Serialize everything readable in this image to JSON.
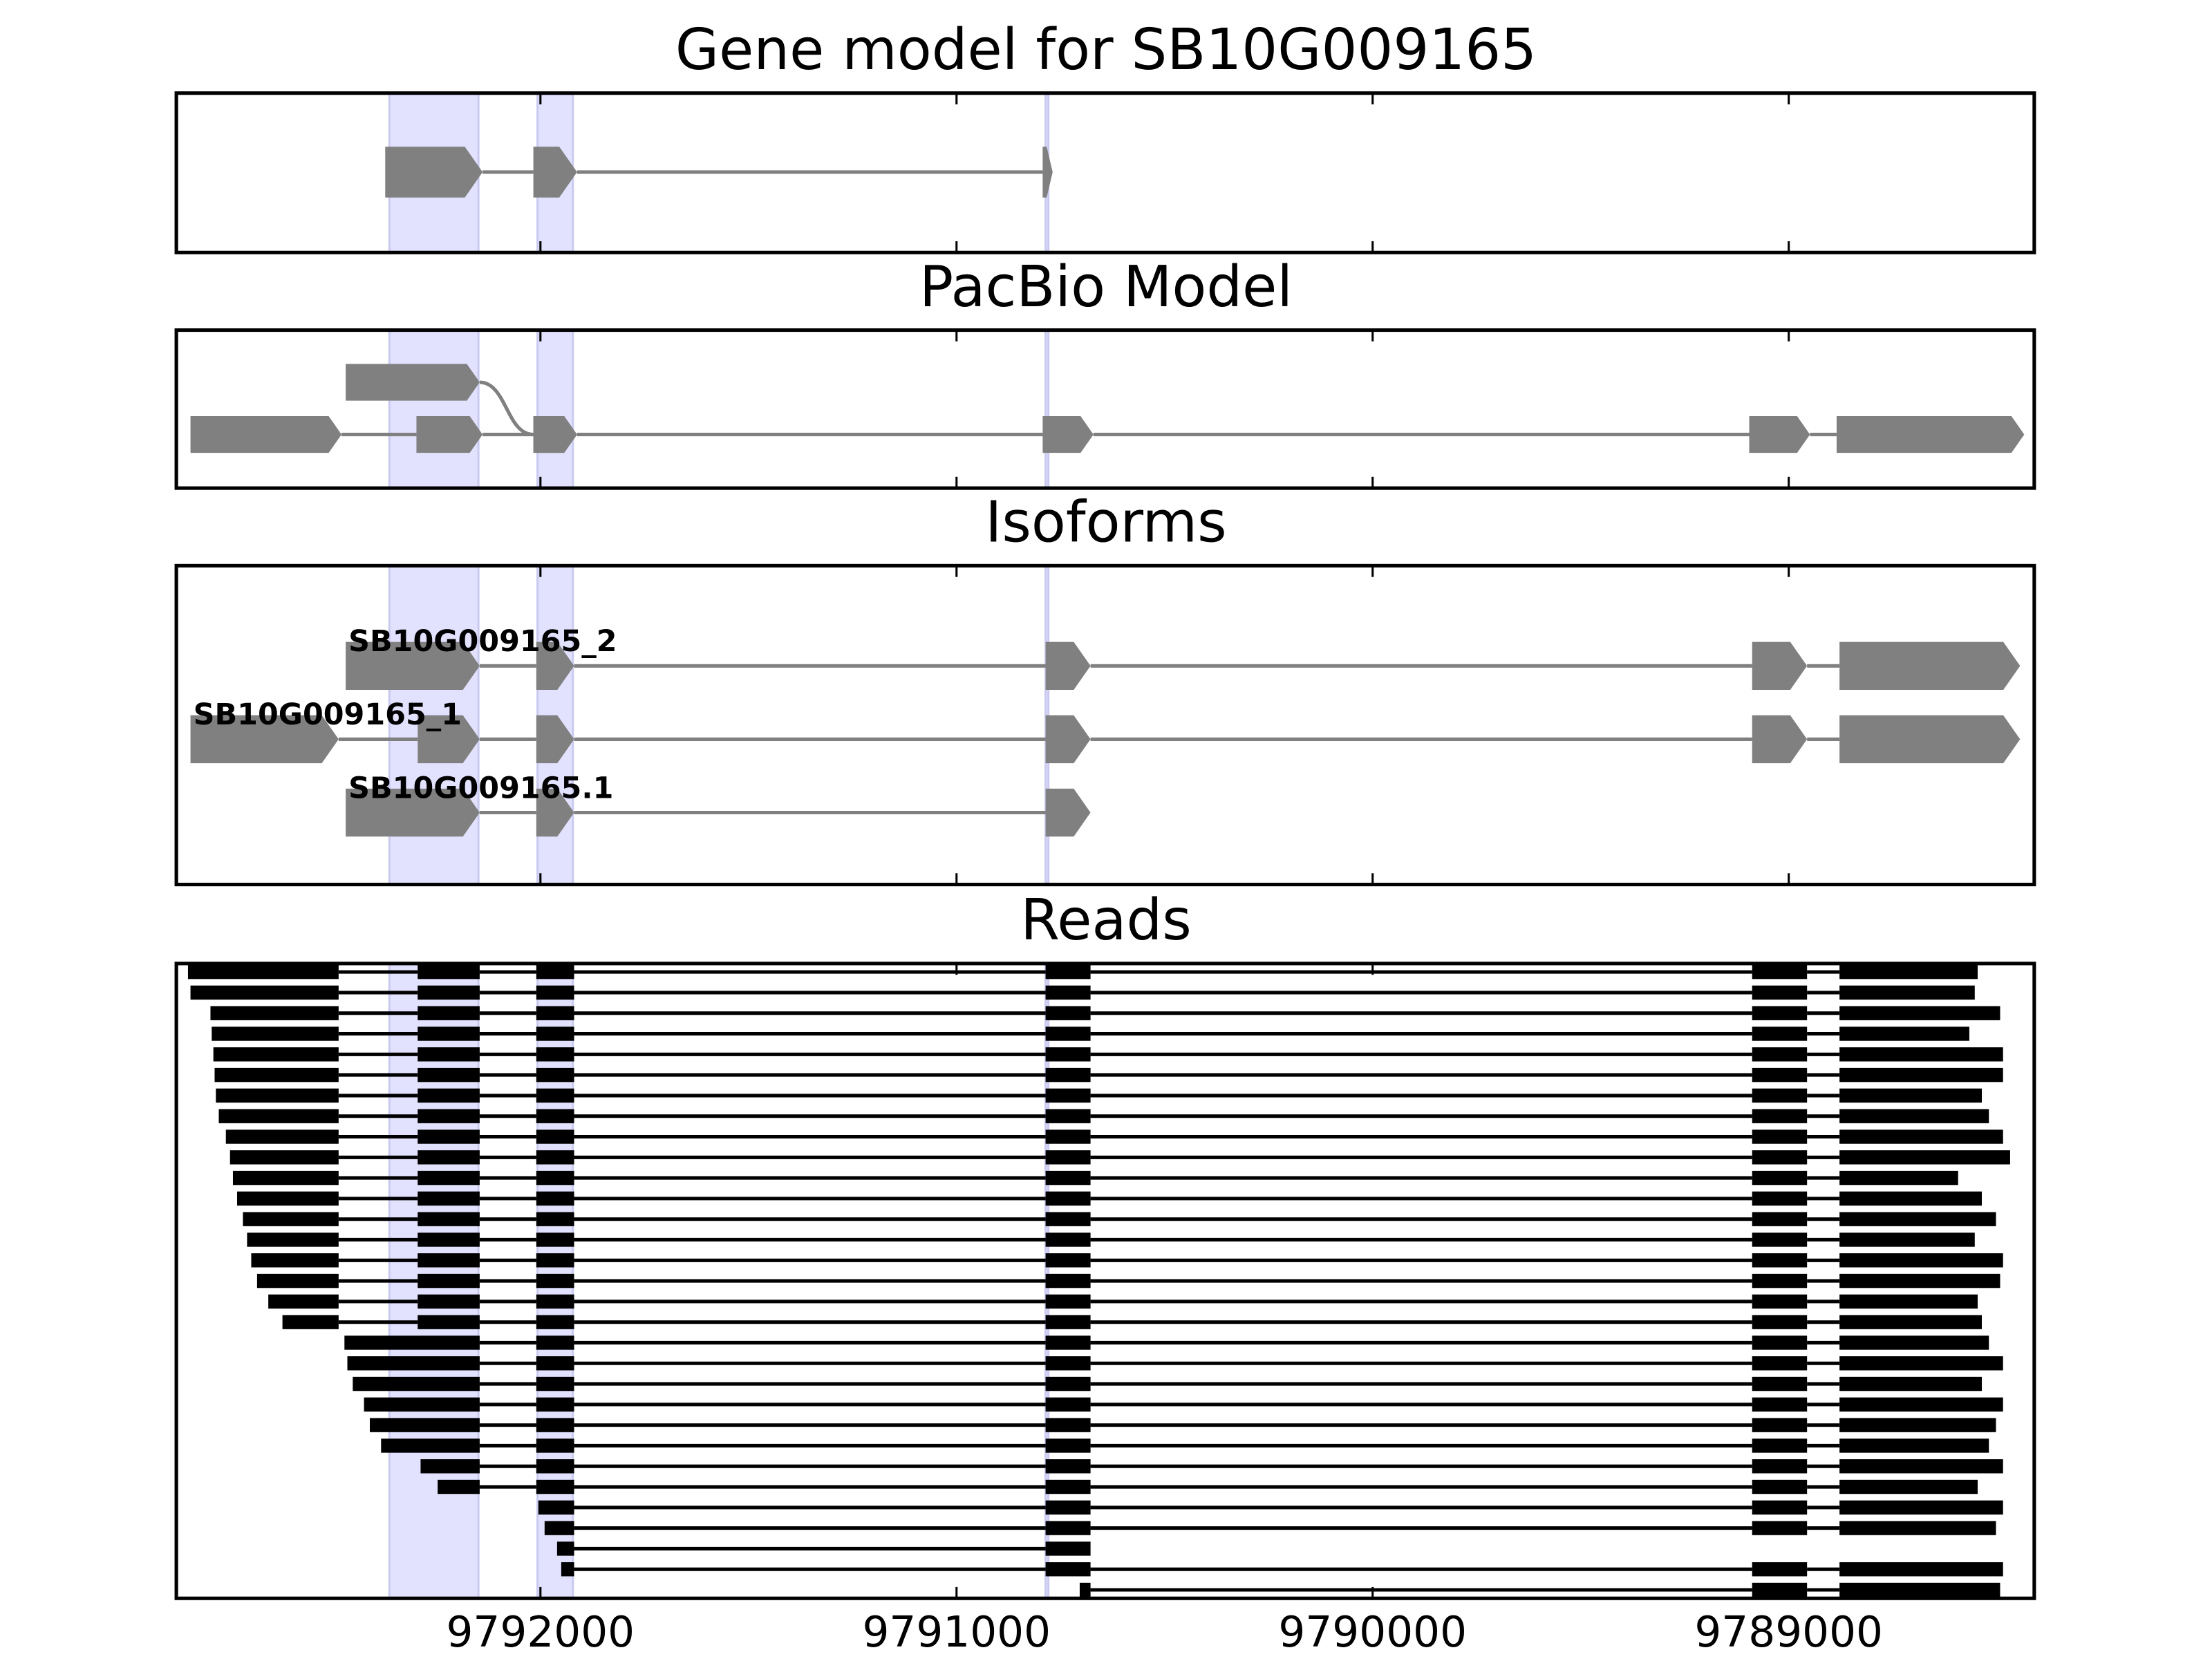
{
  "chart_data": [
    {
      "type": "transcripts",
      "title": "Gene model for SB10G009165",
      "xlim": [
        9792875,
        9788410
      ],
      "highlights": [
        [
          9792363,
          9792149
        ],
        [
          9792007,
          9791922
        ],
        [
          9790786,
          9790781
        ]
      ],
      "color": "#808080",
      "transcripts": [
        [
          [
            9792373,
            9792139
          ],
          [
            9792017,
            9791912
          ],
          [
            9790793,
            9790769
          ]
        ]
      ]
    },
    {
      "type": "transcripts",
      "title": "PacBio Model",
      "xlim": [
        9792875,
        9788410
      ],
      "highlights": [
        [
          9792363,
          9792149
        ],
        [
          9792007,
          9791922
        ],
        [
          9790786,
          9790781
        ]
      ],
      "color": "#808080",
      "transcripts": [
        [
          [
            9792468,
            9792146
          ],
          [
            9792017,
            9791912
          ]
        ],
        [
          [
            9792841,
            9792478
          ],
          [
            9792298,
            9792139
          ],
          [
            9792017,
            9791912
          ],
          [
            9790793,
            9790671
          ],
          [
            9789095,
            9788949
          ],
          [
            9788885,
            9788434
          ]
        ]
      ]
    },
    {
      "type": "isoforms",
      "title": "Isoforms",
      "xlim": [
        9792875,
        9788410
      ],
      "highlights": [
        [
          9792363,
          9792149
        ],
        [
          9792007,
          9791922
        ],
        [
          9790786,
          9790781
        ]
      ],
      "color": "#808080",
      "isoforms": [
        {
          "name": "SB10G009165_2",
          "exons": [
            [
              9792468,
              9792146
            ],
            [
              9792010,
              9791919
            ],
            [
              9790786,
              9790678
            ],
            [
              9789088,
              9788956
            ],
            [
              9788878,
              9788444
            ]
          ]
        },
        {
          "name": "SB10G009165_1",
          "exons": [
            [
              9792841,
              9792485
            ],
            [
              9792295,
              9792146
            ],
            [
              9792010,
              9791919
            ],
            [
              9790786,
              9790678
            ],
            [
              9789088,
              9788956
            ],
            [
              9788878,
              9788444
            ]
          ]
        },
        {
          "name": "SB10G009165.1",
          "exons": [
            [
              9792468,
              9792146
            ],
            [
              9792010,
              9791919
            ],
            [
              9790786,
              9790678
            ]
          ]
        }
      ]
    },
    {
      "type": "reads",
      "title": "Reads",
      "xlim": [
        9792875,
        9788410
      ],
      "xticks": [
        9792000,
        9791000,
        9790000,
        9789000
      ],
      "highlights": [
        [
          9792363,
          9792149
        ],
        [
          9792007,
          9791922
        ],
        [
          9790786,
          9790781
        ]
      ],
      "color": "#000000",
      "reads": [
        [
          [
            9792847,
            9792485
          ],
          [
            9792295,
            9792146
          ],
          [
            9792010,
            9791919
          ],
          [
            9790786,
            9790678
          ],
          [
            9789088,
            9788956
          ],
          [
            9788878,
            9788546
          ]
        ],
        [
          [
            9792841,
            9792485
          ],
          [
            9792295,
            9792146
          ],
          [
            9792010,
            9791919
          ],
          [
            9790786,
            9790678
          ],
          [
            9789088,
            9788956
          ],
          [
            9788878,
            9788553
          ]
        ],
        [
          [
            9792793,
            9792485
          ],
          [
            9792295,
            9792146
          ],
          [
            9792010,
            9791919
          ],
          [
            9790786,
            9790678
          ],
          [
            9789088,
            9788956
          ],
          [
            9788878,
            9788492
          ]
        ],
        [
          [
            9792790,
            9792485
          ],
          [
            9792295,
            9792146
          ],
          [
            9792010,
            9791919
          ],
          [
            9790786,
            9790678
          ],
          [
            9789088,
            9788956
          ],
          [
            9788878,
            9788566
          ]
        ],
        [
          [
            9792786,
            9792485
          ],
          [
            9792295,
            9792146
          ],
          [
            9792010,
            9791919
          ],
          [
            9790786,
            9790678
          ],
          [
            9789088,
            9788956
          ],
          [
            9788878,
            9788485
          ]
        ],
        [
          [
            9792783,
            9792485
          ],
          [
            9792295,
            9792146
          ],
          [
            9792010,
            9791919
          ],
          [
            9790786,
            9790678
          ],
          [
            9789088,
            9788956
          ],
          [
            9788878,
            9788485
          ]
        ],
        [
          [
            9792780,
            9792485
          ],
          [
            9792295,
            9792146
          ],
          [
            9792010,
            9791919
          ],
          [
            9790786,
            9790678
          ],
          [
            9789088,
            9788956
          ],
          [
            9788878,
            9788536
          ]
        ],
        [
          [
            9792773,
            9792485
          ],
          [
            9792295,
            9792146
          ],
          [
            9792010,
            9791919
          ],
          [
            9790786,
            9790678
          ],
          [
            9789088,
            9788956
          ],
          [
            9788878,
            9788519
          ]
        ],
        [
          [
            9792756,
            9792485
          ],
          [
            9792295,
            9792146
          ],
          [
            9792010,
            9791919
          ],
          [
            9790786,
            9790678
          ],
          [
            9789088,
            9788956
          ],
          [
            9788878,
            9788485
          ]
        ],
        [
          [
            9792746,
            9792485
          ],
          [
            9792295,
            9792146
          ],
          [
            9792010,
            9791919
          ],
          [
            9790786,
            9790678
          ],
          [
            9789088,
            9788956
          ],
          [
            9788878,
            9788468
          ]
        ],
        [
          [
            9792739,
            9792485
          ],
          [
            9792295,
            9792146
          ],
          [
            9792010,
            9791919
          ],
          [
            9790786,
            9790678
          ],
          [
            9789088,
            9788956
          ],
          [
            9788878,
            9788593
          ]
        ],
        [
          [
            9792729,
            9792485
          ],
          [
            9792295,
            9792146
          ],
          [
            9792010,
            9791919
          ],
          [
            9790786,
            9790678
          ],
          [
            9789088,
            9788956
          ],
          [
            9788878,
            9788536
          ]
        ],
        [
          [
            9792715,
            9792485
          ],
          [
            9792295,
            9792146
          ],
          [
            9792010,
            9791919
          ],
          [
            9790786,
            9790678
          ],
          [
            9789088,
            9788956
          ],
          [
            9788878,
            9788502
          ]
        ],
        [
          [
            9792705,
            9792485
          ],
          [
            9792295,
            9792146
          ],
          [
            9792010,
            9791919
          ],
          [
            9790786,
            9790678
          ],
          [
            9789088,
            9788956
          ],
          [
            9788878,
            9788553
          ]
        ],
        [
          [
            9792695,
            9792485
          ],
          [
            9792295,
            9792146
          ],
          [
            9792010,
            9791919
          ],
          [
            9790786,
            9790678
          ],
          [
            9789088,
            9788956
          ],
          [
            9788878,
            9788485
          ]
        ],
        [
          [
            9792681,
            9792485
          ],
          [
            9792295,
            9792146
          ],
          [
            9792010,
            9791919
          ],
          [
            9790786,
            9790678
          ],
          [
            9789088,
            9788956
          ],
          [
            9788878,
            9788492
          ]
        ],
        [
          [
            9792654,
            9792485
          ],
          [
            9792295,
            9792146
          ],
          [
            9792010,
            9791919
          ],
          [
            9790786,
            9790678
          ],
          [
            9789088,
            9788956
          ],
          [
            9788878,
            9788546
          ]
        ],
        [
          [
            9792620,
            9792485
          ],
          [
            9792295,
            9792146
          ],
          [
            9792010,
            9791919
          ],
          [
            9790786,
            9790678
          ],
          [
            9789088,
            9788956
          ],
          [
            9788878,
            9788536
          ]
        ],
        [
          [
            9792471,
            9792146
          ],
          [
            9792010,
            9791919
          ],
          [
            9790786,
            9790678
          ],
          [
            9789088,
            9788956
          ],
          [
            9788878,
            9788519
          ]
        ],
        [
          [
            9792464,
            9792146
          ],
          [
            9792010,
            9791919
          ],
          [
            9790786,
            9790678
          ],
          [
            9789088,
            9788956
          ],
          [
            9788878,
            9788485
          ]
        ],
        [
          [
            9792451,
            9792146
          ],
          [
            9792010,
            9791919
          ],
          [
            9790786,
            9790678
          ],
          [
            9789088,
            9788956
          ],
          [
            9788878,
            9788536
          ]
        ],
        [
          [
            9792424,
            9792146
          ],
          [
            9792010,
            9791919
          ],
          [
            9790786,
            9790678
          ],
          [
            9789088,
            9788956
          ],
          [
            9788878,
            9788485
          ]
        ],
        [
          [
            9792410,
            9792146
          ],
          [
            9792010,
            9791919
          ],
          [
            9790786,
            9790678
          ],
          [
            9789088,
            9788956
          ],
          [
            9788878,
            9788502
          ]
        ],
        [
          [
            9792383,
            9792146
          ],
          [
            9792010,
            9791919
          ],
          [
            9790786,
            9790678
          ],
          [
            9789088,
            9788956
          ],
          [
            9788878,
            9788519
          ]
        ],
        [
          [
            9792288,
            9792146
          ],
          [
            9792010,
            9791919
          ],
          [
            9790786,
            9790678
          ],
          [
            9789088,
            9788956
          ],
          [
            9788878,
            9788485
          ]
        ],
        [
          [
            9792247,
            9792146
          ],
          [
            9792010,
            9791919
          ],
          [
            9790786,
            9790678
          ],
          [
            9789088,
            9788956
          ],
          [
            9788878,
            9788546
          ]
        ],
        [
          [
            9792005,
            9791919
          ],
          [
            9790786,
            9790678
          ],
          [
            9789088,
            9788956
          ],
          [
            9788878,
            9788485
          ]
        ],
        [
          [
            9791990,
            9791919
          ],
          [
            9790786,
            9790678
          ],
          [
            9789088,
            9788956
          ],
          [
            9788878,
            9788502
          ]
        ],
        [
          [
            9791960,
            9791919
          ],
          [
            9790786,
            9790678
          ]
        ],
        [
          [
            9791950,
            9791919
          ],
          [
            9790786,
            9790678
          ],
          [
            9789088,
            9788956
          ],
          [
            9788878,
            9788485
          ]
        ],
        [
          [
            9790704,
            9790678
          ],
          [
            9789088,
            9788956
          ],
          [
            9788878,
            9788492
          ]
        ]
      ]
    }
  ]
}
